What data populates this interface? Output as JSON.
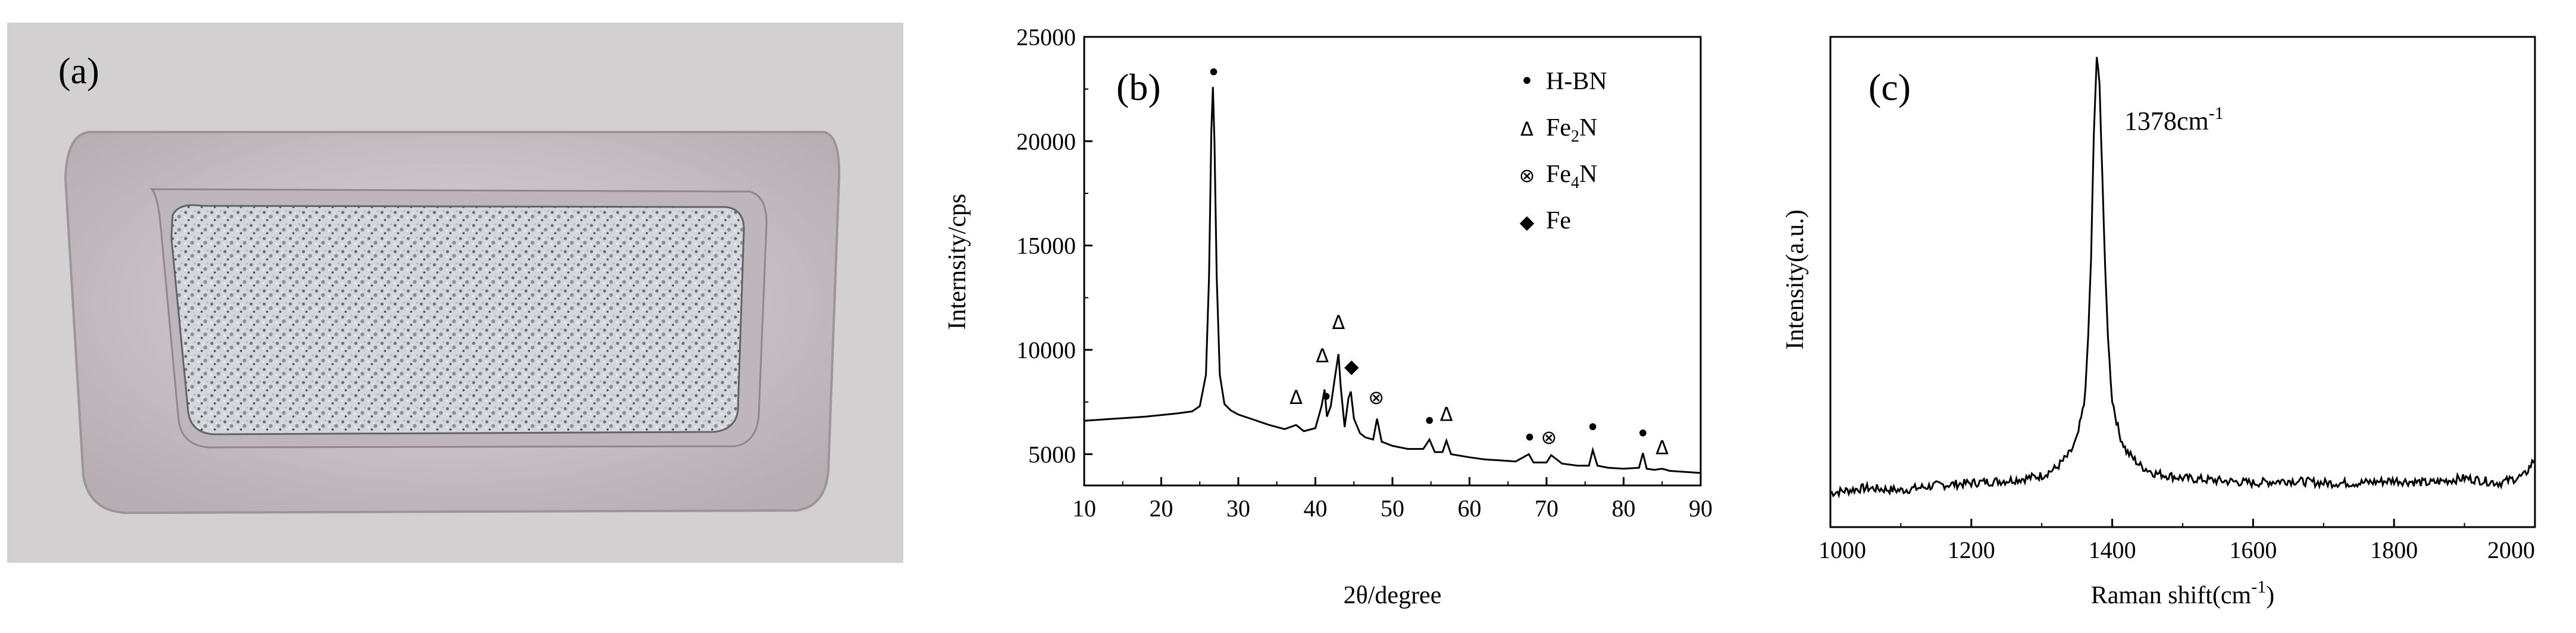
{
  "panel_a": {
    "label": "(a)",
    "background_color": "#ffffff",
    "boat_color": "#c9c0c4",
    "powder_color": "#d2d6da"
  },
  "chart_data": [
    {
      "type": "line",
      "panel_label": "(b)",
      "title": "",
      "xlabel": "2θ/degree",
      "ylabel": "Internsity/cps",
      "xlim": [
        10,
        90
      ],
      "ylim": [
        3500,
        25000
      ],
      "xticks": [
        10,
        20,
        30,
        40,
        50,
        60,
        70,
        80,
        90
      ],
      "yticks": [
        5000,
        10000,
        15000,
        20000,
        25000
      ],
      "grid": false,
      "legend_position": "top-right",
      "legend": [
        {
          "marker": "•",
          "text": "H-BN"
        },
        {
          "marker": "Δ",
          "text": "Fe",
          "sub": "2",
          "rest": "N"
        },
        {
          "marker": "⊗",
          "text": "Fe",
          "sub": "4",
          "rest": "N"
        },
        {
          "marker": "◆",
          "text": "Fe"
        }
      ],
      "series": [
        {
          "color": "#000000",
          "x": [
            10,
            14,
            18,
            22,
            24,
            25,
            25.8,
            26.2,
            26.5,
            26.7,
            26.9,
            27.2,
            27.6,
            28.2,
            29,
            30,
            32,
            34,
            36,
            37.5,
            38.5,
            40,
            40.8,
            41.2,
            41.5,
            42,
            42.5,
            43,
            43.3,
            43.8,
            44.3,
            44.6,
            45,
            45.8,
            46.5,
            47.5,
            48,
            48.6,
            50,
            52,
            54,
            54.8,
            55.5,
            56.5,
            57,
            57.6,
            60,
            62,
            64,
            66,
            67.7,
            68.3,
            70,
            70.6,
            72,
            74,
            75.5,
            76,
            76.6,
            78,
            80,
            82,
            82.5,
            83,
            84,
            85,
            86,
            88,
            90
          ],
          "y": [
            6600,
            6700,
            6800,
            6950,
            7050,
            7300,
            8800,
            13500,
            20500,
            22600,
            20000,
            13500,
            8800,
            7400,
            7100,
            6900,
            6650,
            6400,
            6200,
            6400,
            6100,
            6250,
            7300,
            8100,
            6800,
            7300,
            8600,
            9800,
            8200,
            6300,
            7700,
            8000,
            6700,
            6000,
            5800,
            5700,
            6700,
            5600,
            5400,
            5250,
            5250,
            5700,
            5100,
            5100,
            5650,
            5000,
            4850,
            4750,
            4700,
            4650,
            5000,
            4600,
            4600,
            4950,
            4550,
            4450,
            4450,
            5200,
            4450,
            4350,
            4300,
            4350,
            5050,
            4300,
            4250,
            4300,
            4200,
            4150,
            4100
          ]
        }
      ],
      "annotations": [
        {
          "symbol": "•",
          "x": 26.8,
          "y": 22900
        },
        {
          "symbol": "Δ",
          "x": 37.5,
          "y": 7400
        },
        {
          "symbol": "Δ",
          "x": 40.9,
          "y": 9400
        },
        {
          "symbol": "•",
          "x": 41.4,
          "y": 7350
        },
        {
          "symbol": "Δ",
          "x": 43.0,
          "y": 11000
        },
        {
          "symbol": "◆",
          "x": 44.7,
          "y": 8900
        },
        {
          "symbol": "⊗",
          "x": 47.9,
          "y": 7400
        },
        {
          "symbol": "•",
          "x": 54.8,
          "y": 6200
        },
        {
          "symbol": "Δ",
          "x": 57.0,
          "y": 6600
        },
        {
          "symbol": "•",
          "x": 67.8,
          "y": 5400
        },
        {
          "symbol": "⊗",
          "x": 70.3,
          "y": 5500
        },
        {
          "symbol": "•",
          "x": 76.0,
          "y": 5900
        },
        {
          "symbol": "•",
          "x": 82.5,
          "y": 5600
        },
        {
          "symbol": "Δ",
          "x": 85.0,
          "y": 5000
        }
      ]
    },
    {
      "type": "line",
      "panel_label": "(c)",
      "title": "",
      "xlabel": "Raman shift(cm",
      "xlabel_sup": "-1",
      "xlabel_end": ")",
      "ylabel": "Intensity(a.u.)",
      "xlim": [
        1000,
        2000
      ],
      "ylim": [
        0,
        100
      ],
      "xticks": [
        1000,
        1200,
        1400,
        1600,
        1800,
        2000
      ],
      "yticks": [],
      "grid": false,
      "peak_label": {
        "text": "1378cm",
        "sup": "-1",
        "x": 1378,
        "y": 95
      },
      "series": [
        {
          "color": "#000000",
          "x": [
            1000,
            1050,
            1100,
            1150,
            1200,
            1250,
            1280,
            1300,
            1320,
            1340,
            1350,
            1360,
            1365,
            1370,
            1374,
            1378,
            1382,
            1386,
            1390,
            1395,
            1400,
            1410,
            1420,
            1440,
            1460,
            1500,
            1550,
            1600,
            1650,
            1700,
            1750,
            1800,
            1850,
            1900,
            1950,
            1985,
            2000
          ],
          "y": [
            7,
            8,
            7.5,
            8.5,
            9,
            9.5,
            10,
            10.5,
            12,
            15,
            18,
            25,
            35,
            55,
            80,
            96,
            90,
            72,
            52,
            36,
            26,
            19,
            15.5,
            12.5,
            11,
            10,
            9.5,
            9,
            9.5,
            9,
            9,
            9.5,
            9,
            10,
            9,
            10.5,
            14
          ]
        }
      ]
    }
  ]
}
